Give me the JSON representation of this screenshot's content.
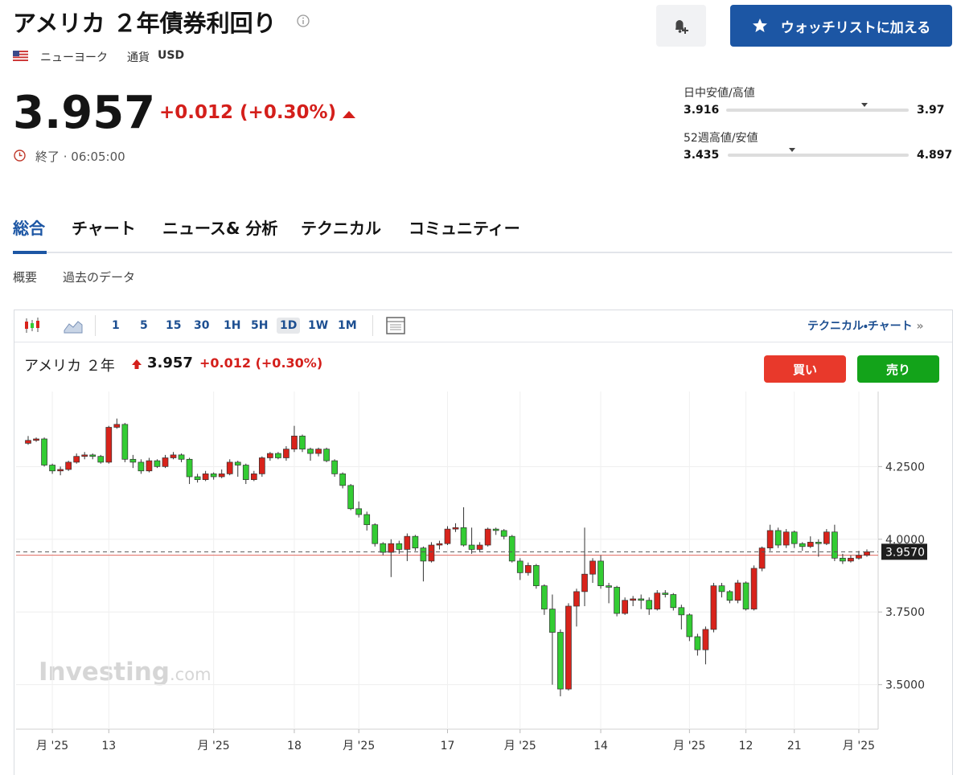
{
  "header": {
    "title": "アメリカ ２年債券利回り",
    "exchange": "ニューヨーク",
    "currency_label": "通貨",
    "currency": "USD",
    "price": 3.957,
    "change": "+0.012 (+0.30%)",
    "status": "終了 · 06:05:00",
    "watchlist": "ウォッチリストに加える"
  },
  "day_range": {
    "label": "日中安値/高値",
    "low": 3.916,
    "high": 3.97
  },
  "week52_range": {
    "label": "52週高値/安値",
    "low": 3.435,
    "high": 4.897
  },
  "tabs": [
    "総合",
    "チャート",
    "ニュース& 分析",
    "テクニカル",
    "コミュニティー"
  ],
  "subtabs": [
    "概要",
    "過去のデータ"
  ],
  "toolbar": {
    "intervals": [
      "1",
      "5",
      "15",
      "30",
      "1H",
      "5H",
      "1D",
      "1W",
      "1M"
    ],
    "selected": "1D",
    "technical_link": "テクニカル・チャート",
    "link_arrow": "»"
  },
  "chart_header": {
    "name": "アメリカ ２年",
    "buy": "買い",
    "sell": "売り"
  },
  "watermark": {
    "brand": "Investing",
    "suffix": ".com"
  },
  "chart_data": {
    "type": "candlestick",
    "categories": [
      null,
      null,
      null,
      "月 '25",
      null,
      null,
      null,
      null,
      null,
      null,
      "13",
      null,
      null,
      null,
      null,
      null,
      null,
      null,
      null,
      null,
      null,
      null,
      null,
      "月 '25",
      null,
      null,
      null,
      null,
      null,
      null,
      null,
      null,
      null,
      "18",
      null,
      null,
      null,
      null,
      null,
      null,
      null,
      "月 '25",
      null,
      null,
      null,
      null,
      null,
      null,
      null,
      null,
      null,
      null,
      "17",
      null,
      null,
      null,
      null,
      null,
      null,
      null,
      null,
      "月 '25",
      null,
      null,
      null,
      null,
      null,
      null,
      null,
      null,
      null,
      "14",
      null,
      null,
      null,
      null,
      null,
      null,
      null,
      null,
      null,
      null,
      "月 '25",
      null,
      null,
      null,
      null,
      null,
      null,
      "12",
      null,
      null,
      null,
      null,
      null,
      "21",
      null,
      null,
      null,
      null,
      null,
      null,
      null,
      "月 '25",
      null
    ],
    "open": [
      4.33,
      4.34,
      4.345,
      4.255,
      4.235,
      4.24,
      4.265,
      4.285,
      4.29,
      4.285,
      4.265,
      4.385,
      4.395,
      4.275,
      4.265,
      4.235,
      4.27,
      4.25,
      4.28,
      4.29,
      4.275,
      4.215,
      4.205,
      4.225,
      4.215,
      4.225,
      4.265,
      4.255,
      4.205,
      4.225,
      4.28,
      4.295,
      4.28,
      4.31,
      4.355,
      4.31,
      4.295,
      4.31,
      4.27,
      4.225,
      4.185,
      4.105,
      4.085,
      4.05,
      3.985,
      3.955,
      3.985,
      3.965,
      4.01,
      3.97,
      3.925,
      3.98,
      3.985,
      4.035,
      4.04,
      3.98,
      3.965,
      3.98,
      4.035,
      4.03,
      4.01,
      3.925,
      3.885,
      3.91,
      3.84,
      3.76,
      3.68,
      3.485,
      3.77,
      3.82,
      3.88,
      3.925,
      3.84,
      3.835,
      3.745,
      3.79,
      3.795,
      3.79,
      3.76,
      3.815,
      3.81,
      3.765,
      3.74,
      3.665,
      3.62,
      3.69,
      3.84,
      3.82,
      3.79,
      3.85,
      3.76,
      3.9,
      3.97,
      4.03,
      3.98,
      4.025,
      3.985,
      3.975,
      3.99,
      3.985,
      4.025,
      3.935,
      3.925,
      3.935,
      3.945
    ],
    "high": [
      4.355,
      4.35,
      4.35,
      4.26,
      4.25,
      4.27,
      4.295,
      4.3,
      4.295,
      4.29,
      4.39,
      4.415,
      4.4,
      4.29,
      4.275,
      4.28,
      4.275,
      4.29,
      4.3,
      4.295,
      4.28,
      4.225,
      4.235,
      4.23,
      4.24,
      4.275,
      4.27,
      4.26,
      4.235,
      4.285,
      4.3,
      4.3,
      4.32,
      4.39,
      4.36,
      4.315,
      4.315,
      4.315,
      4.275,
      4.23,
      4.19,
      4.13,
      4.095,
      4.055,
      3.99,
      4.0,
      3.995,
      4.02,
      4.015,
      3.975,
      3.99,
      3.995,
      4.045,
      4.055,
      4.11,
      4.04,
      3.99,
      4.04,
      4.04,
      4.035,
      4.015,
      3.935,
      3.92,
      3.915,
      3.845,
      3.81,
      3.69,
      3.78,
      3.83,
      4.04,
      3.935,
      3.945,
      3.85,
      3.84,
      3.8,
      3.805,
      3.81,
      3.8,
      3.825,
      3.825,
      3.815,
      3.775,
      3.745,
      3.675,
      3.7,
      3.85,
      3.85,
      3.825,
      3.86,
      3.855,
      3.91,
      3.975,
      4.05,
      4.04,
      4.035,
      4.03,
      3.99,
      4.01,
      4.0,
      4.035,
      4.05,
      3.95,
      3.945,
      3.96,
      3.965
    ],
    "low": [
      4.325,
      4.335,
      4.25,
      4.225,
      4.22,
      4.235,
      4.26,
      4.275,
      4.275,
      4.26,
      4.26,
      4.38,
      4.265,
      4.245,
      4.225,
      4.23,
      4.245,
      4.245,
      4.275,
      4.265,
      4.19,
      4.195,
      4.2,
      4.205,
      4.21,
      4.22,
      4.215,
      4.19,
      4.2,
      4.215,
      4.27,
      4.275,
      4.27,
      4.3,
      4.3,
      4.27,
      4.285,
      4.265,
      4.215,
      4.175,
      4.1,
      4.075,
      4.03,
      3.975,
      3.945,
      3.87,
      3.95,
      3.925,
      3.96,
      3.855,
      3.92,
      3.965,
      3.98,
      4.025,
      3.975,
      3.95,
      3.955,
      3.975,
      4.015,
      4.0,
      3.92,
      3.86,
      3.875,
      3.83,
      3.74,
      3.5,
      3.46,
      3.48,
      3.7,
      3.77,
      3.85,
      3.83,
      3.78,
      3.735,
      3.74,
      3.77,
      3.76,
      3.74,
      3.755,
      3.8,
      3.755,
      3.69,
      3.65,
      3.6,
      3.57,
      3.68,
      3.8,
      3.78,
      3.78,
      3.755,
      3.755,
      3.89,
      3.96,
      3.97,
      3.97,
      3.97,
      3.96,
      3.97,
      3.94,
      3.98,
      3.925,
      3.915,
      3.92,
      3.93,
      3.94
    ],
    "close": [
      4.34,
      4.345,
      4.255,
      4.235,
      4.24,
      4.265,
      4.285,
      4.29,
      4.285,
      4.265,
      4.385,
      4.395,
      4.275,
      4.265,
      4.235,
      4.27,
      4.25,
      4.28,
      4.29,
      4.275,
      4.215,
      4.205,
      4.225,
      4.215,
      4.225,
      4.265,
      4.255,
      4.205,
      4.225,
      4.28,
      4.295,
      4.28,
      4.31,
      4.355,
      4.31,
      4.295,
      4.31,
      4.27,
      4.225,
      4.185,
      4.105,
      4.085,
      4.05,
      3.985,
      3.955,
      3.985,
      3.965,
      4.01,
      3.97,
      3.925,
      3.98,
      3.985,
      4.035,
      4.04,
      3.98,
      3.965,
      3.98,
      4.035,
      4.03,
      4.01,
      3.925,
      3.885,
      3.91,
      3.84,
      3.76,
      3.68,
      3.485,
      3.77,
      3.82,
      3.88,
      3.925,
      3.84,
      3.835,
      3.745,
      3.79,
      3.795,
      3.79,
      3.76,
      3.815,
      3.81,
      3.765,
      3.74,
      3.665,
      3.62,
      3.69,
      3.84,
      3.82,
      3.79,
      3.85,
      3.76,
      3.9,
      3.97,
      4.03,
      3.98,
      4.025,
      3.985,
      3.975,
      3.99,
      3.985,
      4.025,
      3.935,
      3.925,
      3.935,
      3.945,
      3.957
    ],
    "ylim": [
      3.347,
      4.508
    ],
    "yticks": [
      {
        "value": 4.25,
        "label": "4.2500"
      },
      {
        "value": 4.0,
        "label": "4.0000"
      },
      {
        "value": 3.75,
        "label": "3.7500"
      },
      {
        "value": 3.5,
        "label": "3.5000"
      }
    ],
    "last": {
      "value": 3.957,
      "label": "3.9570"
    },
    "prev_close": 3.945,
    "up_color": "#d8231b",
    "down_color": "#33cc33",
    "grid": true
  }
}
